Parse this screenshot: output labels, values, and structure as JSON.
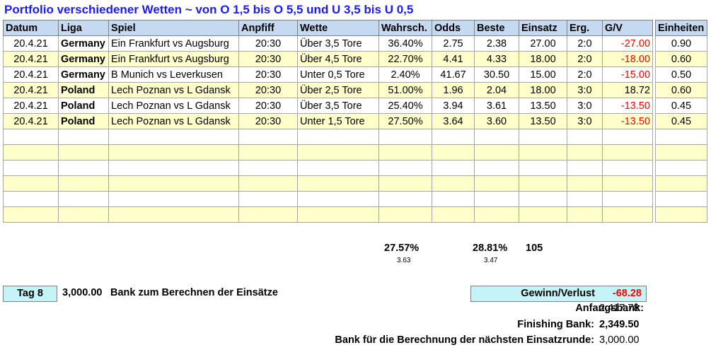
{
  "title": "Portfolio verschiedener Wetten ~ von O 1,5 bis O 5,5 und U 3,5 bis U 0,5",
  "headers": [
    "Datum",
    "Liga",
    "Spiel",
    "Anpfiff",
    "Wette",
    "Wahrsch.",
    "Odds",
    "Beste",
    "Einsatz",
    "Erg.",
    "G/V"
  ],
  "units_header": "Einheiten",
  "rows": [
    {
      "datum": "20.4.21",
      "liga": "Germany",
      "spiel": "Ein Frankfurt vs Augsburg",
      "anpfiff": "20:30",
      "wette": "Über 3,5 Tore",
      "wahrsch": "36.40%",
      "odds": "2.75",
      "beste": "2.38",
      "einsatz": "27.00",
      "erg": "2:0",
      "gv": "-27.00",
      "einheiten": "0.90"
    },
    {
      "datum": "20.4.21",
      "liga": "Germany",
      "spiel": "Ein Frankfurt vs Augsburg",
      "anpfiff": "20:30",
      "wette": "Über 4,5 Tore",
      "wahrsch": "22.70%",
      "odds": "4.41",
      "beste": "4.33",
      "einsatz": "18.00",
      "erg": "2:0",
      "gv": "-18.00",
      "einheiten": "0.60"
    },
    {
      "datum": "20.4.21",
      "liga": "Germany",
      "spiel": "B Munich vs Leverkusen",
      "anpfiff": "20:30",
      "wette": "Unter 0,5 Tore",
      "wahrsch": "2.40%",
      "odds": "41.67",
      "beste": "30.50",
      "einsatz": "15.00",
      "erg": "2:0",
      "gv": "-15.00",
      "einheiten": "0.50"
    },
    {
      "datum": "20.4.21",
      "liga": "Poland",
      "spiel": "Lech Poznan vs L Gdansk",
      "anpfiff": "20:30",
      "wette": "Über 2,5 Tore",
      "wahrsch": "51.00%",
      "odds": "1.96",
      "beste": "2.04",
      "einsatz": "18.00",
      "erg": "3:0",
      "gv": "18.72",
      "einheiten": "0.60"
    },
    {
      "datum": "20.4.21",
      "liga": "Poland",
      "spiel": "Lech Poznan vs L Gdansk",
      "anpfiff": "20:30",
      "wette": "Über 3,5 Tore",
      "wahrsch": "25.40%",
      "odds": "3.94",
      "beste": "3.61",
      "einsatz": "13.50",
      "erg": "3:0",
      "gv": "-13.50",
      "einheiten": "0.45"
    },
    {
      "datum": "20.4.21",
      "liga": "Poland",
      "spiel": "Lech Poznan vs L Gdansk",
      "anpfiff": "20:30",
      "wette": "Unter 1,5 Tore",
      "wahrsch": "27.50%",
      "odds": "3.64",
      "beste": "3.60",
      "einsatz": "13.50",
      "erg": "3:0",
      "gv": "-13.50",
      "einheiten": "0.45"
    }
  ],
  "empty_rows": 6,
  "summary": {
    "wahrsch_avg": "27.57%",
    "wahrsch_sub": "3.63",
    "beste_avg": "28.81%",
    "beste_sub": "3.47",
    "einsatz_total": "105"
  },
  "footer": {
    "tag": "Tag 8",
    "bank_amount": "3,000.00",
    "bank_label": "Bank zum Berechnen der Einsätze",
    "gv_label": "Gewinn/Verlust",
    "gv_value": "-68.28",
    "anfangsbank_label": "Anfangsbank:",
    "anfangsbank_value": "2,417.78",
    "finishing_label": "Finishing Bank:",
    "finishing_value": "2,349.50",
    "next_label": "Bank für die Berechnung der nächsten Einsatzrunde:",
    "next_value": "3,000.00"
  },
  "colors": {
    "header_bg": "#c5d9f1",
    "alt_row_bg": "#ffffcc",
    "negative": "#ff0000",
    "title": "#1a1aff",
    "highlight_box": "#c5f3f7"
  }
}
